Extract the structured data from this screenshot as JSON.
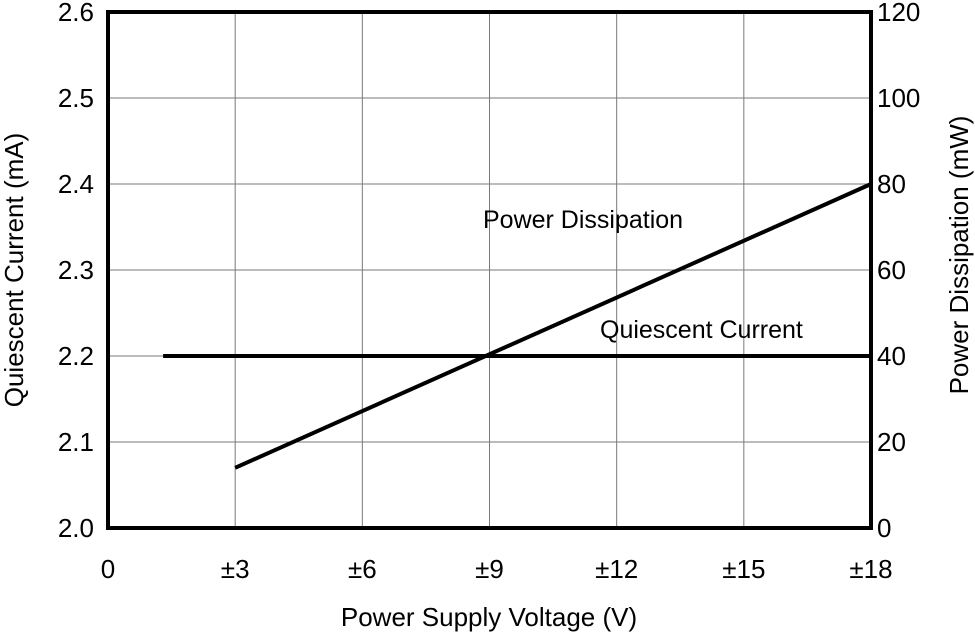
{
  "chart_data": {
    "type": "line",
    "xlabel": "Power Supply Voltage (V)",
    "ylabel_left": "Quiescent Current (mA)",
    "ylabel_right": "Power Dissipation (mW)",
    "x_tick_labels": [
      "0",
      "±3",
      "±6",
      "±9",
      "±12",
      "±15",
      "±18"
    ],
    "x_ticks": [
      0,
      3,
      6,
      9,
      12,
      15,
      18
    ],
    "xlim": [
      0,
      18
    ],
    "y_left_ticks": [
      "2.0",
      "2.1",
      "2.2",
      "2.3",
      "2.4",
      "2.5",
      "2.6"
    ],
    "ylim_left": [
      2.0,
      2.6
    ],
    "y_right_ticks": [
      "0",
      "20",
      "40",
      "60",
      "80",
      "100",
      "120"
    ],
    "ylim_right": [
      0,
      120
    ],
    "grid": true,
    "series": [
      {
        "name": "Power Dissipation",
        "axis": "right",
        "x": [
          3,
          18
        ],
        "y": [
          14,
          80
        ]
      },
      {
        "name": "Quiescent Current",
        "axis": "left",
        "x": [
          1.3,
          18
        ],
        "y": [
          2.2,
          2.2
        ]
      }
    ],
    "annotations": [
      "Power Dissipation",
      "Quiescent Current"
    ]
  }
}
